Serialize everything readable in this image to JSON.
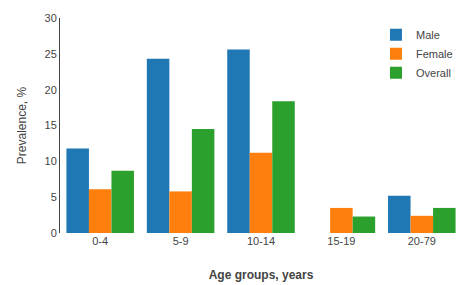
{
  "chart_data": {
    "type": "bar",
    "xlabel": "Age groups, years",
    "ylabel": "Prevalence, %",
    "categories": [
      "0-4",
      "5-9",
      "10-14",
      "15-19",
      "20-79"
    ],
    "series": [
      {
        "name": "Male",
        "values": [
          11.8,
          24.3,
          25.6,
          0.0,
          5.2
        ]
      },
      {
        "name": "Female",
        "values": [
          6.1,
          5.8,
          11.2,
          3.5,
          2.4
        ]
      },
      {
        "name": "Overall",
        "values": [
          8.7,
          14.5,
          18.4,
          2.3,
          3.5
        ]
      }
    ],
    "ylim": [
      0,
      30
    ],
    "yticks": [
      0,
      5,
      10,
      15,
      20,
      25,
      30
    ],
    "grid": false,
    "legend": "upper right"
  }
}
